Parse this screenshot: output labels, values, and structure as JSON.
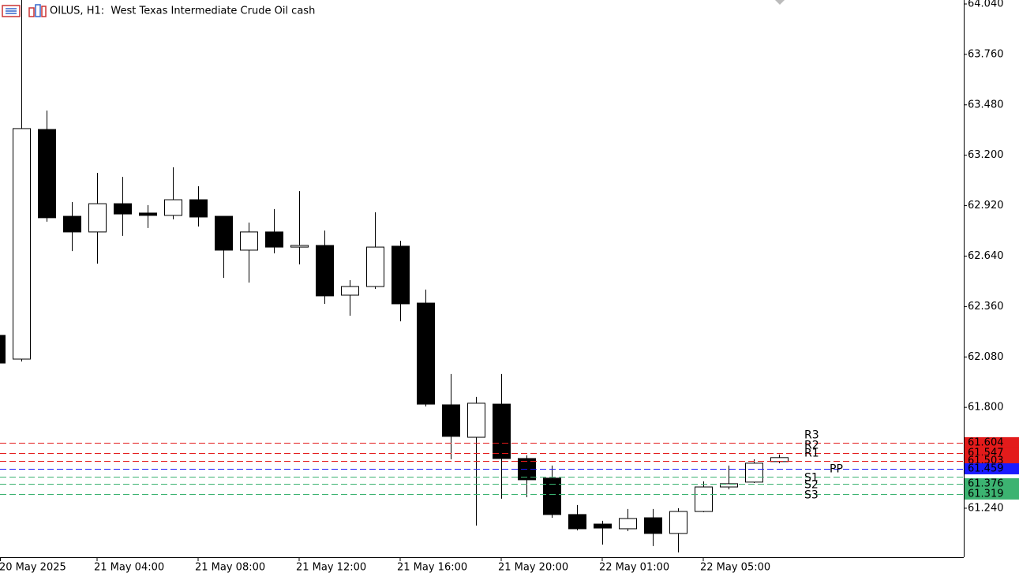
{
  "chart_data": {
    "type": "candlestick",
    "title": "OILUS, H1:  West Texas Intermediate Crude Oil cash",
    "categories": [
      "20 May 2025",
      null,
      null,
      null,
      "21 May 04:00",
      null,
      null,
      null,
      "21 May 08:00",
      null,
      null,
      null,
      "21 May 12:00",
      null,
      null,
      null,
      "21 May 16:00",
      null,
      null,
      null,
      "21 May 20:00",
      null,
      null,
      null,
      "22 May 01:00",
      null,
      null,
      null,
      "22 May 05:00",
      null,
      null,
      null
    ],
    "open": [
      62.2,
      62.068,
      63.343,
      62.861,
      62.774,
      62.931,
      62.879,
      62.866,
      62.953,
      62.861,
      62.673,
      62.774,
      62.69,
      62.699,
      62.423,
      62.471,
      62.695,
      62.379,
      61.814,
      61.634,
      61.818,
      61.516,
      61.407,
      61.205,
      61.152,
      61.126,
      61.187,
      61.1,
      61.222,
      61.358,
      61.385,
      61.499
    ],
    "high": [
      62.2,
      64.062,
      63.448,
      62.94,
      63.102,
      63.08,
      62.923,
      63.133,
      63.028,
      62.861,
      62.826,
      62.901,
      63.001,
      62.782,
      62.506,
      62.883,
      62.725,
      62.454,
      61.985,
      61.858,
      61.985,
      61.534,
      61.477,
      61.258,
      61.17,
      61.236,
      61.236,
      61.24,
      61.389,
      61.477,
      61.512,
      61.538
    ],
    "low": [
      62.046,
      62.055,
      62.831,
      62.668,
      62.598,
      62.752,
      62.796,
      62.844,
      62.804,
      62.519,
      62.493,
      62.655,
      62.594,
      62.375,
      62.309,
      62.458,
      62.278,
      61.805,
      61.512,
      61.144,
      61.293,
      61.301,
      61.187,
      61.117,
      61.038,
      61.113,
      61.03,
      60.995,
      61.218,
      61.345,
      61.38,
      61.49
    ],
    "close": [
      62.046,
      63.348,
      62.853,
      62.774,
      62.931,
      62.874,
      62.866,
      62.953,
      62.857,
      62.673,
      62.774,
      62.69,
      62.699,
      62.419,
      62.471,
      62.69,
      62.375,
      61.818,
      61.639,
      61.823,
      61.516,
      61.398,
      61.205,
      61.126,
      61.13,
      61.183,
      61.1,
      61.222,
      61.358,
      61.376,
      61.49,
      61.521
    ],
    "up_color": "#ffffff",
    "down_color": "#000000",
    "levels": [
      {
        "name": "R3",
        "value": 61.604,
        "color": "#e31b1b",
        "tag": true
      },
      {
        "name": "R2",
        "value": 61.547,
        "color": "#e31b1b",
        "tag": true
      },
      {
        "name": "R1",
        "value": 61.503,
        "color": "#e31b1b",
        "tag": true
      },
      {
        "name": "PP",
        "value": 61.459,
        "color": "#1a1aff",
        "tag": true
      },
      {
        "name": "S1",
        "value": 61.416,
        "color": "#3cb371",
        "tag": false
      },
      {
        "name": "S2",
        "value": 61.376,
        "color": "#3cb371",
        "tag": true
      },
      {
        "name": "S3",
        "value": 61.319,
        "color": "#3cb371",
        "tag": true
      }
    ],
    "ylim": [
      60.968,
      64.062
    ],
    "yticks": [
      {
        "value": 64.04,
        "label": "64.040"
      },
      {
        "value": 63.76,
        "label": "63.760"
      },
      {
        "value": 63.48,
        "label": "63.480"
      },
      {
        "value": 63.2,
        "label": "63.200"
      },
      {
        "value": 62.92,
        "label": "62.920"
      },
      {
        "value": 62.64,
        "label": "62.640"
      },
      {
        "value": 62.36,
        "label": "62.360"
      },
      {
        "value": 62.08,
        "label": "62.080"
      },
      {
        "value": 61.8,
        "label": "61.800"
      },
      {
        "value": 61.24,
        "label": "61.240"
      }
    ]
  }
}
